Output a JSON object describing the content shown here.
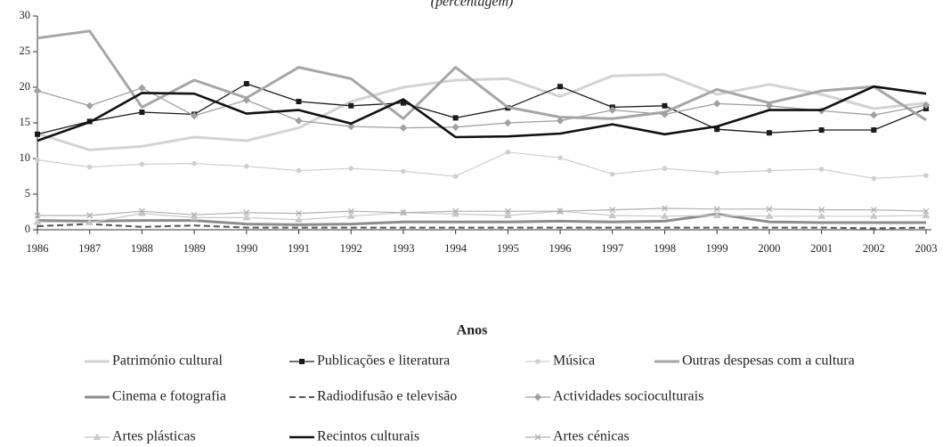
{
  "chart_data": {
    "type": "line",
    "subtitle": "(percentagem)",
    "x_label": "Anos",
    "categories": [
      "1986",
      "1987",
      "1988",
      "1989",
      "1990",
      "1991",
      "1992",
      "1993",
      "1994",
      "1995",
      "1996",
      "1997",
      "1998",
      "1999",
      "2000",
      "2001",
      "2002",
      "2003"
    ],
    "ylim": [
      0,
      30
    ],
    "yticks": [
      0,
      5,
      10,
      15,
      20,
      25,
      30
    ],
    "grid": false,
    "series": [
      {
        "name": "Património cultural",
        "color": "#d3d3d3",
        "line_width": 3,
        "dash": false,
        "marker": "none",
        "values": [
          13.5,
          11.2,
          11.7,
          13,
          12.5,
          14.3,
          18,
          20,
          21,
          21.2,
          18.7,
          21.6,
          21.8,
          19,
          20.4,
          19,
          17,
          17.8
        ]
      },
      {
        "name": "Publicações e literatura",
        "color": "#1a1a1a",
        "line_width": 1.3,
        "dash": false,
        "marker": "square",
        "values": [
          13.4,
          15.2,
          16.5,
          16.2,
          20.5,
          18,
          17.4,
          17.8,
          15.7,
          17.1,
          20.1,
          17.2,
          17.4,
          14.1,
          13.6,
          14,
          14,
          17
        ]
      },
      {
        "name": "Música",
        "color": "#cfcfcf",
        "line_width": 1.2,
        "dash": false,
        "marker": "dot",
        "values": [
          9.8,
          8.8,
          9.2,
          9.3,
          8.9,
          8.3,
          8.6,
          8.2,
          7.5,
          10.9,
          10.1,
          7.8,
          8.6,
          8,
          8.3,
          8.5,
          7.2,
          7.6
        ]
      },
      {
        "name": "Outras despesas com a cultura",
        "color": "#a6a6a6",
        "line_width": 3,
        "dash": false,
        "marker": "none",
        "values": [
          26.9,
          27.9,
          17.2,
          21,
          18.5,
          22.8,
          21.2,
          15.6,
          22.8,
          17.2,
          15.8,
          15.6,
          16.5,
          19.7,
          17.8,
          19.5,
          20.1,
          15.4
        ]
      },
      {
        "name": "Cinema e fotografia",
        "color": "#8c8c8c",
        "line_width": 3,
        "dash": false,
        "marker": "none",
        "values": [
          1.3,
          1.2,
          1.3,
          1.3,
          0.8,
          0.7,
          0.8,
          1.1,
          1.1,
          1.1,
          1.2,
          1.1,
          1.2,
          2.2,
          1.1,
          1,
          1,
          1
        ]
      },
      {
        "name": "Radiodifusão e televisão",
        "color": "#555555",
        "line_width": 2,
        "dash": true,
        "marker": "none",
        "values": [
          0.5,
          0.8,
          0.4,
          0.6,
          0.3,
          0.3,
          0.3,
          0.3,
          0.3,
          0.3,
          0.3,
          0.3,
          0.3,
          0.3,
          0.3,
          0.3,
          0.2,
          0.3
        ]
      },
      {
        "name": "Actividades socioculturais",
        "color": "#a0a0a0",
        "line_width": 1.3,
        "dash": false,
        "marker": "diamond",
        "values": [
          19.5,
          17.4,
          19.9,
          16,
          18.2,
          15.3,
          14.5,
          14.3,
          14.4,
          15,
          15.3,
          16.8,
          16.2,
          17.7,
          17.4,
          16.7,
          16.1,
          17.5
        ]
      },
      {
        "name": "Artes plásticas",
        "color": "#c8c8c8",
        "line_width": 1.2,
        "dash": false,
        "marker": "triangle",
        "values": [
          1.1,
          1,
          2.3,
          1.7,
          1.7,
          1.4,
          1.9,
          2.4,
          2.2,
          2,
          2.6,
          2,
          1.9,
          2,
          1.9,
          1.9,
          1.9,
          2
        ]
      },
      {
        "name": "Recintos culturais",
        "color": "#111111",
        "line_width": 2.6,
        "dash": false,
        "marker": "none",
        "values": [
          12.5,
          15.1,
          19.2,
          19.1,
          16.3,
          16.8,
          14.9,
          18.3,
          13,
          13.1,
          13.5,
          14.8,
          13.4,
          14.5,
          16.8,
          16.8,
          20.1,
          19.1
        ]
      },
      {
        "name": "Artes cénicas",
        "color": "#b0b0b0",
        "line_width": 1.2,
        "dash": false,
        "marker": "x",
        "values": [
          2,
          2,
          2.6,
          2.1,
          2.4,
          2.3,
          2.6,
          2.4,
          2.6,
          2.6,
          2.6,
          2.8,
          3,
          2.9,
          2.9,
          2.8,
          2.8,
          2.6
        ]
      }
    ]
  }
}
